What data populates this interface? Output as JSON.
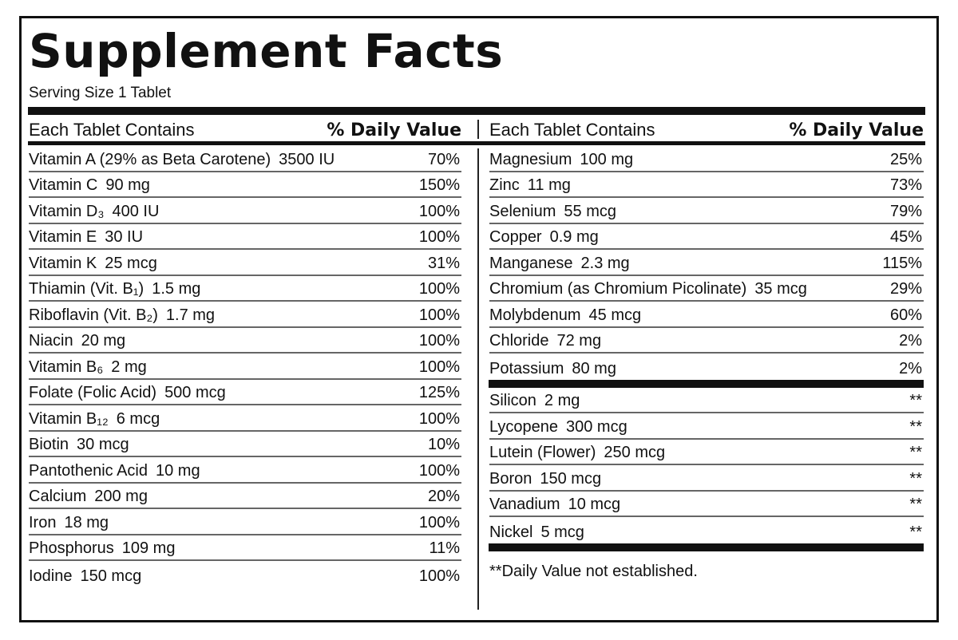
{
  "title": "Supplement Facts",
  "serving_size": "Serving Size 1 Tablet",
  "header": {
    "contains": "Each Tablet Contains",
    "daily_value": "% Daily Value",
    "separator": "|"
  },
  "left_rows": [
    {
      "name": "Vitamin A (29% as Beta Carotene)",
      "amount": "3500 IU",
      "dv": "70%"
    },
    {
      "name": "Vitamin C",
      "amount": "90 mg",
      "dv": "150%"
    },
    {
      "name": "Vitamin D₃",
      "amount": "400 IU",
      "dv": "100%"
    },
    {
      "name": "Vitamin E",
      "amount": "30 IU",
      "dv": "100%"
    },
    {
      "name": "Vitamin K",
      "amount": "25 mcg",
      "dv": "31%"
    },
    {
      "name": "Thiamin (Vit. B₁)",
      "amount": "1.5 mg",
      "dv": "100%"
    },
    {
      "name": "Riboflavin (Vit. B₂)",
      "amount": "1.7 mg",
      "dv": "100%"
    },
    {
      "name": "Niacin",
      "amount": "20 mg",
      "dv": "100%"
    },
    {
      "name": "Vitamin B₆",
      "amount": "2 mg",
      "dv": "100%"
    },
    {
      "name": "Folate (Folic Acid)",
      "amount": "500 mcg",
      "dv": "125%"
    },
    {
      "name": "Vitamin B₁₂",
      "amount": "6 mcg",
      "dv": "100%"
    },
    {
      "name": "Biotin",
      "amount": "30 mcg",
      "dv": "10%"
    },
    {
      "name": "Pantothenic Acid",
      "amount": "10 mg",
      "dv": "100%"
    },
    {
      "name": "Calcium",
      "amount": "200 mg",
      "dv": "20%"
    },
    {
      "name": "Iron",
      "amount": "18 mg",
      "dv": "100%"
    },
    {
      "name": "Phosphorus",
      "amount": "109 mg",
      "dv": "11%"
    },
    {
      "name": "Iodine",
      "amount": "150 mcg",
      "dv": "100%"
    }
  ],
  "right_rows": [
    {
      "name": "Magnesium",
      "amount": "100 mg",
      "dv": "25%"
    },
    {
      "name": "Zinc",
      "amount": "11 mg",
      "dv": "73%"
    },
    {
      "name": "Selenium",
      "amount": "55 mcg",
      "dv": "79%"
    },
    {
      "name": "Copper",
      "amount": "0.9 mg",
      "dv": "45%"
    },
    {
      "name": "Manganese",
      "amount": "2.3 mg",
      "dv": "115%"
    },
    {
      "name": "Chromium (as Chromium Picolinate)",
      "amount": "35 mcg",
      "dv": "29%"
    },
    {
      "name": "Molybdenum",
      "amount": "45 mcg",
      "dv": "60%"
    },
    {
      "name": "Chloride",
      "amount": "72 mg",
      "dv": "2%"
    },
    {
      "name": "Potassium",
      "amount": "80 mg",
      "dv": "2%"
    }
  ],
  "right_rows_no_dv": [
    {
      "name": "Silicon",
      "amount": "2 mg",
      "dv": "**"
    },
    {
      "name": "Lycopene",
      "amount": "300 mcg",
      "dv": "**"
    },
    {
      "name": "Lutein (Flower)",
      "amount": "250 mcg",
      "dv": "**"
    },
    {
      "name": "Boron",
      "amount": "150 mcg",
      "dv": "**"
    },
    {
      "name": "Vanadium",
      "amount": "10 mcg",
      "dv": "**"
    },
    {
      "name": "Nickel",
      "amount": "5 mcg",
      "dv": "**"
    }
  ],
  "footnote": "**Daily Value not established."
}
